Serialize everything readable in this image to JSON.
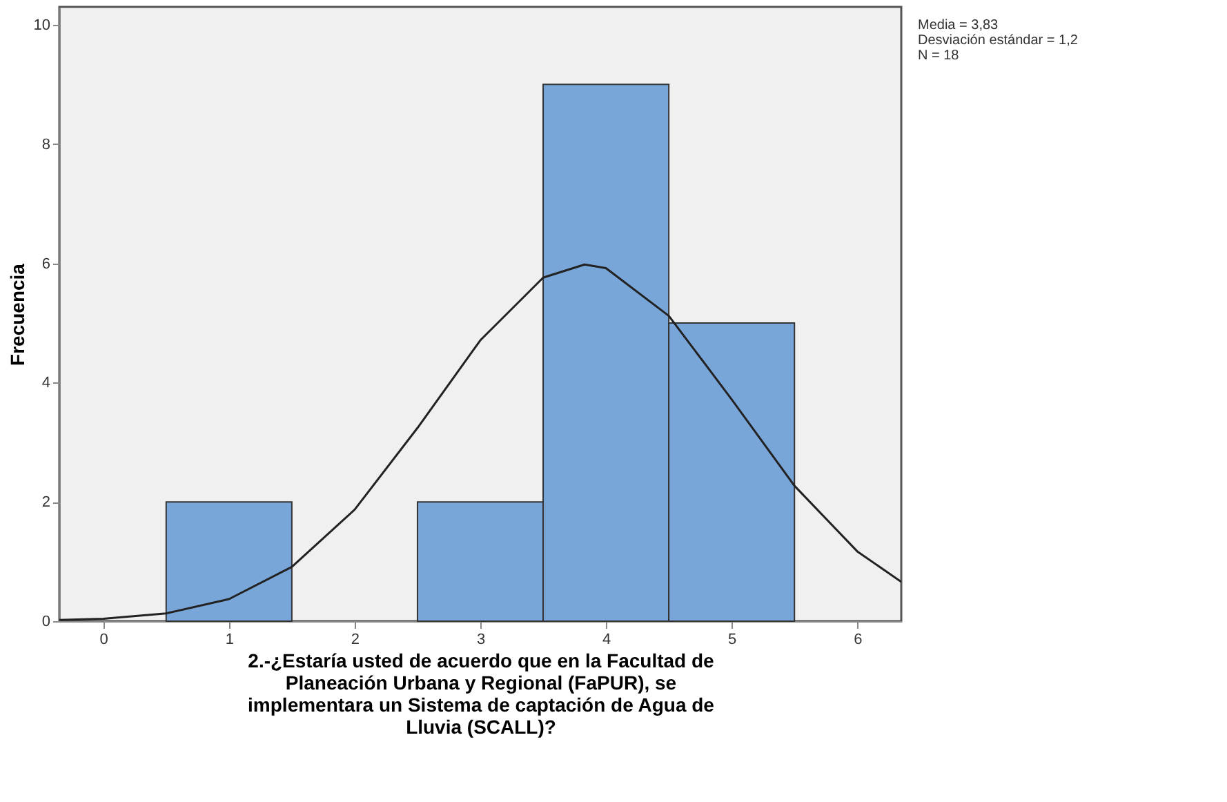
{
  "chart_data": {
    "type": "histogram",
    "bins": [
      0.5,
      1.5,
      2.5,
      3.5,
      4.5,
      5.5
    ],
    "values": [
      2,
      0,
      2,
      9,
      5
    ],
    "color": "#79a6d9",
    "series": [
      {
        "type": "line",
        "color": "#222222",
        "x": [
          -0.35,
          0,
          0.5,
          1,
          1.5,
          2,
          2.5,
          3,
          3.5,
          3.83,
          4,
          4.5,
          5,
          5.5,
          6,
          6.35
        ],
        "values": [
          0.02,
          0.04,
          0.13,
          0.37,
          0.91,
          1.87,
          3.24,
          4.71,
          5.76,
          5.98,
          5.92,
          5.12,
          3.72,
          2.27,
          1.17,
          0.66
        ]
      }
    ],
    "xlabel": "2.-¿Estaría usted de acuerdo que en la Facultad de\nPlaneación Urbana y Regional (FaPUR), se\nimplementara un Sistema de captación de Agua de\nLluvia (SCALL)?",
    "ylabel": "Frecuencia",
    "xlim": [
      -0.35,
      6.35
    ],
    "xticks": [
      0,
      1,
      2,
      3,
      4,
      5,
      6
    ],
    "ylim": [
      0,
      10.3
    ],
    "yticks": [
      0,
      2,
      4,
      6,
      8,
      10
    ],
    "grid": false,
    "annotations": [
      "Media = 3,83\nDesviación estándar = 1,2\nN = 18"
    ]
  }
}
